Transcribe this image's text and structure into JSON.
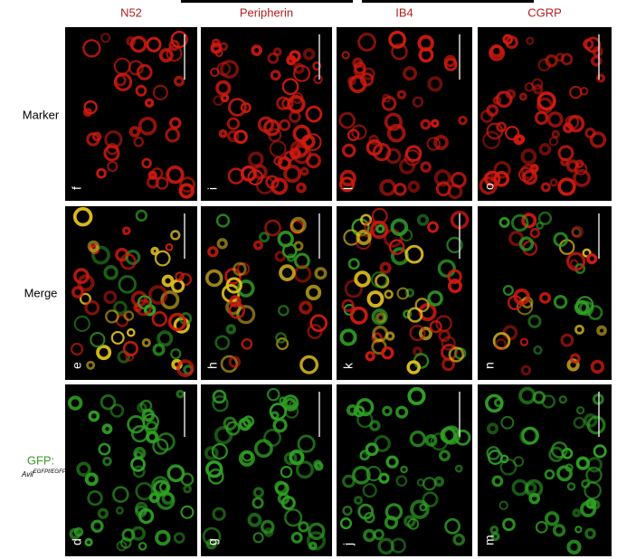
{
  "columns": [
    "N52",
    "Peripherin",
    "IB4",
    "CGRP"
  ],
  "rows": [
    {
      "label": "Marker",
      "panels": [
        "f",
        "i",
        "l",
        "o"
      ]
    },
    {
      "label": "Merge",
      "panels": [
        "e",
        "h",
        "k",
        "n"
      ]
    },
    {
      "label": "GFP:",
      "sublabel": "Avil",
      "sublabel_sup": "EGFPf/EGFPf",
      "panels": [
        "d",
        "g",
        "j",
        "m"
      ]
    }
  ]
}
